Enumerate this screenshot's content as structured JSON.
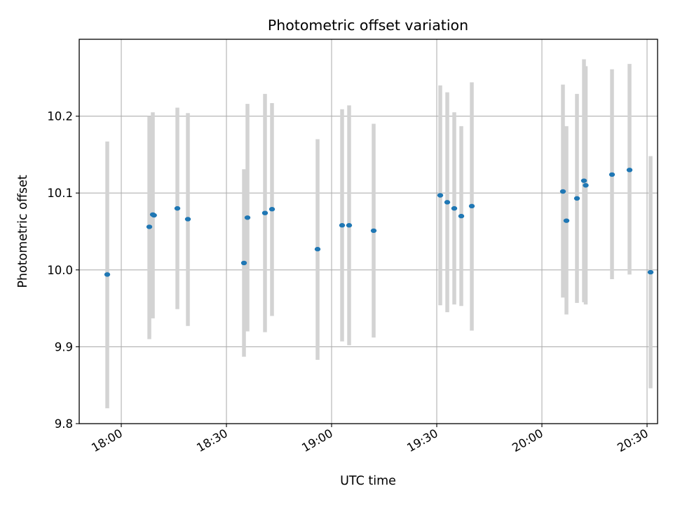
{
  "chart_data": {
    "type": "scatter",
    "title": "Photometric offset variation",
    "xlabel": "UTC time",
    "ylabel": "Photometric offset",
    "x_type": "time",
    "xlim": [
      "17:48",
      "20:33"
    ],
    "ylim": [
      9.8,
      10.3
    ],
    "x_ticks": [
      "18:00",
      "18:30",
      "19:00",
      "19:30",
      "20:00",
      "20:30"
    ],
    "y_ticks": [
      9.8,
      9.9,
      10.0,
      10.1,
      10.2
    ],
    "grid": true,
    "colors": {
      "points": "#1f77b4",
      "error_bars": "#d3d3d3",
      "grid": "#b0b0b0",
      "axes": "#000000"
    },
    "series": [
      {
        "points": [
          {
            "x": "17:56",
            "y": 9.994,
            "ylow": 9.82,
            "yhigh": 10.167
          },
          {
            "x": "18:08",
            "y": 10.056,
            "ylow": 9.91,
            "yhigh": 10.2
          },
          {
            "x": "18:09",
            "y": 10.072,
            "ylow": 9.937,
            "yhigh": 10.205
          },
          {
            "x": "18:09:20",
            "y": 10.071
          },
          {
            "x": "18:16",
            "y": 10.08,
            "ylow": 9.949,
            "yhigh": 10.211
          },
          {
            "x": "18:19",
            "y": 10.066,
            "ylow": 9.927,
            "yhigh": 10.204
          },
          {
            "x": "18:35",
            "y": 10.009,
            "ylow": 9.887,
            "yhigh": 10.131
          },
          {
            "x": "18:36",
            "y": 10.068,
            "ylow": 9.92,
            "yhigh": 10.216
          },
          {
            "x": "18:41",
            "y": 10.074,
            "ylow": 9.919,
            "yhigh": 10.229
          },
          {
            "x": "18:43",
            "y": 10.079,
            "ylow": 9.94,
            "yhigh": 10.217
          },
          {
            "x": "18:56",
            "y": 10.027,
            "ylow": 9.883,
            "yhigh": 10.17
          },
          {
            "x": "19:03",
            "y": 10.058,
            "ylow": 9.907,
            "yhigh": 10.209
          },
          {
            "x": "19:05",
            "y": 10.058,
            "ylow": 9.902,
            "yhigh": 10.214
          },
          {
            "x": "19:12",
            "y": 10.051,
            "ylow": 9.912,
            "yhigh": 10.19
          },
          {
            "x": "19:31",
            "y": 10.097,
            "ylow": 9.954,
            "yhigh": 10.24
          },
          {
            "x": "19:33",
            "y": 10.088,
            "ylow": 9.945,
            "yhigh": 10.231
          },
          {
            "x": "19:35",
            "y": 10.08,
            "ylow": 9.955,
            "yhigh": 10.205
          },
          {
            "x": "19:37",
            "y": 10.07,
            "ylow": 9.953,
            "yhigh": 10.187
          },
          {
            "x": "19:40",
            "y": 10.083,
            "ylow": 9.921,
            "yhigh": 10.244
          },
          {
            "x": "20:06",
            "y": 10.102,
            "ylow": 9.964,
            "yhigh": 10.241
          },
          {
            "x": "20:07",
            "y": 10.064,
            "ylow": 9.942,
            "yhigh": 10.187
          },
          {
            "x": "20:10",
            "y": 10.093,
            "ylow": 9.957,
            "yhigh": 10.229
          },
          {
            "x": "20:12",
            "y": 10.116,
            "ylow": 9.958,
            "yhigh": 10.274
          },
          {
            "x": "20:12:30",
            "y": 10.11,
            "ylow": 9.955,
            "yhigh": 10.265
          },
          {
            "x": "20:20",
            "y": 10.124,
            "ylow": 9.988,
            "yhigh": 10.261
          },
          {
            "x": "20:25",
            "y": 10.13,
            "ylow": 9.994,
            "yhigh": 10.268
          },
          {
            "x": "20:31",
            "y": 9.997,
            "ylow": 9.846,
            "yhigh": 10.148
          }
        ]
      }
    ]
  }
}
